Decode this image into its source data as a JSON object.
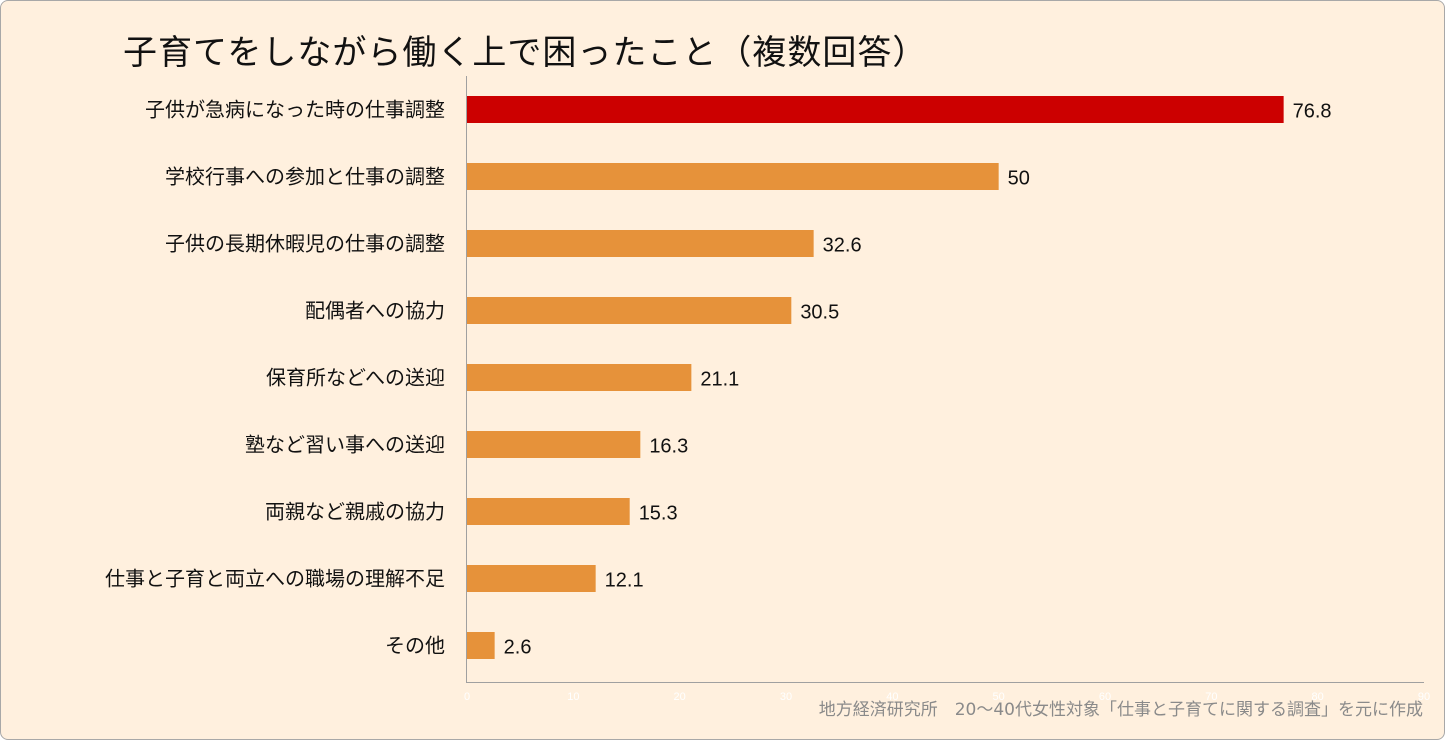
{
  "chart_data": {
    "type": "bar",
    "orientation": "horizontal",
    "title": "子育てをしながら働く上で困ったこと（複数回答）",
    "categories": [
      "子供が急病になった時の仕事調整",
      "学校行事への参加と仕事の調整",
      "子供の長期休暇児の仕事の調整",
      "配偶者への協力",
      "保育所などへの送迎",
      "塾など習い事への送迎",
      "両親など親戚の協力",
      "仕事と子育と両立への職場の理解不足",
      "その他"
    ],
    "values": [
      76.8,
      50,
      32.6,
      30.5,
      21.1,
      16.3,
      15.3,
      12.1,
      2.6
    ],
    "value_labels": [
      "76.8",
      "50",
      "32.6",
      "30.5",
      "21.1",
      "16.3",
      "15.3",
      "12.1",
      "2.6"
    ],
    "xlim": [
      0,
      90
    ],
    "xticks": [
      "0",
      "10",
      "20",
      "30",
      "40",
      "50",
      "60",
      "70",
      "80",
      "90"
    ],
    "grid": false,
    "legend": "none",
    "colors": {
      "highlight": "#cc0000",
      "bar": "#e6923a",
      "background": "#fff0de",
      "axis": "#a0a0a0"
    },
    "source": "地方経済研究所　20～40代女性対象「仕事と子育てに関する調査」を元に作成"
  }
}
